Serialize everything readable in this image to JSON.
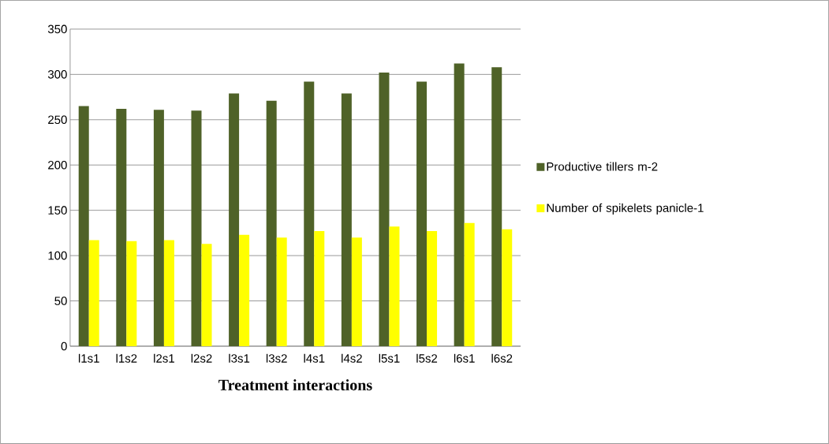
{
  "chart_data": {
    "type": "bar",
    "xlabel": "Treatment interactions",
    "categories": [
      "l1s1",
      "l1s2",
      "l2s1",
      "l2s2",
      "l3s1",
      "l3s2",
      "l4s1",
      "l4s2",
      "l5s1",
      "l5s2",
      "l6s1",
      "l6s2"
    ],
    "series": [
      {
        "name": "Productive tillers m-2",
        "color": "#4f6228",
        "values": [
          265,
          262,
          261,
          260,
          279,
          271,
          292,
          279,
          302,
          292,
          312,
          308
        ]
      },
      {
        "name": "Number of spikelets panicle-1",
        "color": "#ffff00",
        "values": [
          117,
          116,
          117,
          113,
          123,
          120,
          127,
          120,
          132,
          127,
          136,
          129
        ]
      }
    ],
    "ylim": [
      0,
      350
    ],
    "yticks": [
      0,
      50,
      100,
      150,
      200,
      250,
      300,
      350
    ],
    "grid": "y",
    "legend": "right"
  }
}
